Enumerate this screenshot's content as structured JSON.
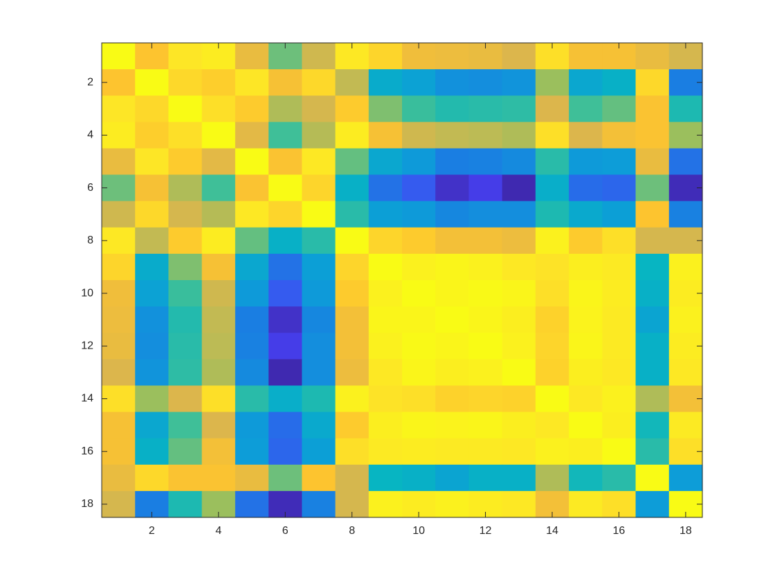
{
  "chart_data": {
    "type": "heatmap",
    "title": "",
    "xlabel": "",
    "ylabel": "",
    "xlim": [
      0.5,
      18.5
    ],
    "ylim": [
      0.5,
      18.5
    ],
    "y_direction": "reverse",
    "x_ticks": [
      "2",
      "4",
      "6",
      "8",
      "10",
      "12",
      "14",
      "16",
      "18"
    ],
    "y_ticks": [
      "2",
      "4",
      "6",
      "8",
      "10",
      "12",
      "14",
      "16",
      "18"
    ],
    "grid": false,
    "legend": "none",
    "colormap": [
      "#3e26a8",
      "#4743f8",
      "#1a7ee2",
      "#0d9dd8",
      "#07b5c2",
      "#3fbf98",
      "#9bbf5d",
      "#dcb64c",
      "#fdc42f",
      "#fde626",
      "#f9fb15"
    ],
    "values": [
      [
        1.0,
        0.8,
        0.9,
        0.93,
        0.74,
        0.55,
        0.68,
        0.91,
        0.85,
        0.76,
        0.75,
        0.74,
        0.7,
        0.88,
        0.78,
        0.78,
        0.74,
        0.69
      ],
      [
        0.8,
        1.0,
        0.86,
        0.83,
        0.9,
        0.78,
        0.86,
        0.66,
        0.36,
        0.32,
        0.26,
        0.25,
        0.27,
        0.6,
        0.34,
        0.38,
        0.86,
        0.2
      ],
      [
        0.9,
        0.86,
        1.0,
        0.88,
        0.82,
        0.63,
        0.69,
        0.82,
        0.57,
        0.49,
        0.45,
        0.46,
        0.47,
        0.7,
        0.5,
        0.54,
        0.79,
        0.44
      ],
      [
        0.93,
        0.83,
        0.88,
        1.0,
        0.72,
        0.5,
        0.64,
        0.93,
        0.78,
        0.68,
        0.66,
        0.65,
        0.63,
        0.88,
        0.7,
        0.77,
        0.79,
        0.6
      ],
      [
        0.74,
        0.9,
        0.82,
        0.72,
        1.0,
        0.79,
        0.91,
        0.54,
        0.34,
        0.29,
        0.2,
        0.21,
        0.24,
        0.46,
        0.29,
        0.3,
        0.74,
        0.18
      ],
      [
        0.55,
        0.78,
        0.63,
        0.5,
        0.79,
        1.0,
        0.85,
        0.38,
        0.18,
        0.14,
        0.04,
        0.08,
        0.01,
        0.37,
        0.17,
        0.16,
        0.55,
        0.02
      ],
      [
        0.68,
        0.86,
        0.69,
        0.64,
        0.91,
        0.85,
        1.0,
        0.46,
        0.31,
        0.29,
        0.23,
        0.25,
        0.25,
        0.44,
        0.35,
        0.31,
        0.8,
        0.21
      ],
      [
        0.91,
        0.66,
        0.82,
        0.93,
        0.54,
        0.38,
        0.46,
        1.0,
        0.85,
        0.82,
        0.77,
        0.77,
        0.75,
        0.95,
        0.82,
        0.88,
        0.69,
        0.69
      ],
      [
        0.85,
        0.36,
        0.57,
        0.78,
        0.34,
        0.18,
        0.31,
        0.85,
        1.0,
        0.95,
        0.97,
        0.95,
        0.91,
        0.89,
        0.94,
        0.92,
        0.4,
        0.95
      ],
      [
        0.76,
        0.32,
        0.49,
        0.68,
        0.29,
        0.14,
        0.29,
        0.82,
        0.95,
        1.0,
        0.97,
        0.99,
        0.97,
        0.88,
        0.97,
        0.93,
        0.38,
        0.93
      ],
      [
        0.75,
        0.26,
        0.45,
        0.66,
        0.2,
        0.04,
        0.23,
        0.77,
        0.97,
        0.97,
        1.0,
        0.97,
        0.94,
        0.84,
        0.96,
        0.92,
        0.33,
        0.95
      ],
      [
        0.74,
        0.25,
        0.46,
        0.65,
        0.21,
        0.08,
        0.25,
        0.77,
        0.95,
        0.99,
        0.97,
        1.0,
        0.95,
        0.85,
        0.97,
        0.92,
        0.38,
        0.93
      ],
      [
        0.7,
        0.27,
        0.47,
        0.63,
        0.24,
        0.01,
        0.25,
        0.75,
        0.91,
        0.97,
        0.94,
        0.95,
        1.0,
        0.84,
        0.94,
        0.91,
        0.38,
        0.91
      ],
      [
        0.88,
        0.6,
        0.7,
        0.88,
        0.46,
        0.37,
        0.44,
        0.95,
        0.89,
        0.88,
        0.84,
        0.85,
        0.84,
        1.0,
        0.91,
        0.95,
        0.63,
        0.77
      ],
      [
        0.78,
        0.34,
        0.5,
        0.7,
        0.29,
        0.17,
        0.35,
        0.82,
        0.94,
        0.97,
        0.96,
        0.97,
        0.94,
        0.91,
        1.0,
        0.94,
        0.42,
        0.92
      ],
      [
        0.78,
        0.38,
        0.54,
        0.77,
        0.3,
        0.16,
        0.31,
        0.88,
        0.92,
        0.93,
        0.92,
        0.92,
        0.91,
        0.95,
        0.94,
        1.0,
        0.46,
        0.88
      ],
      [
        0.74,
        0.86,
        0.79,
        0.79,
        0.74,
        0.55,
        0.8,
        0.69,
        0.4,
        0.38,
        0.33,
        0.38,
        0.38,
        0.63,
        0.42,
        0.46,
        1.0,
        0.3
      ],
      [
        0.69,
        0.2,
        0.44,
        0.6,
        0.18,
        0.02,
        0.21,
        0.69,
        0.95,
        0.93,
        0.95,
        0.93,
        0.91,
        0.77,
        0.92,
        0.88,
        0.3,
        1.0
      ]
    ]
  }
}
